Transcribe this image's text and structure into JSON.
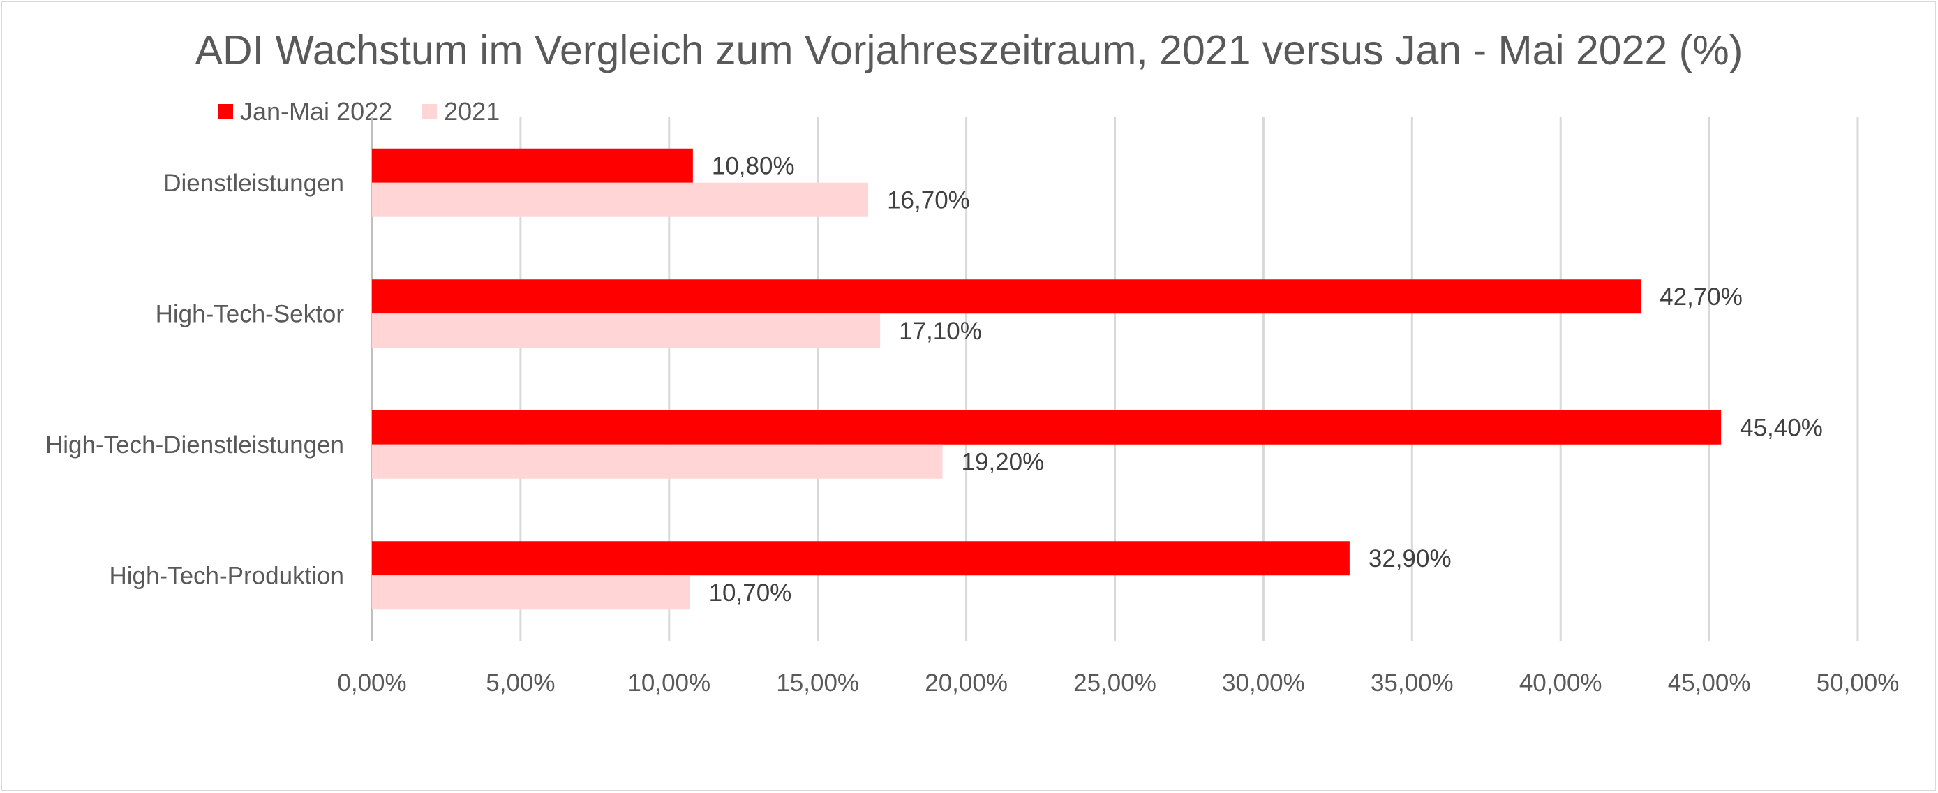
{
  "chart_data": {
    "type": "bar",
    "orientation": "horizontal",
    "title": "ADI Wachstum im Vergleich zum Vorjahreszeitraum, 2021 versus Jan - Mai 2022 (%)",
    "categories": [
      "Dienstleistungen",
      "High-Tech-Sektor",
      "High-Tech-Dienstleistungen",
      "High-Tech-Produktion"
    ],
    "series": [
      {
        "name": "Jan-Mai 2022",
        "color": "#ff0000",
        "values": [
          10.8,
          42.7,
          45.4,
          32.9
        ],
        "labels": [
          "10,80%",
          "42,70%",
          "45,40%",
          "32,90%"
        ]
      },
      {
        "name": "2021",
        "color": "#ffd5d5",
        "values": [
          16.7,
          17.1,
          19.2,
          10.7
        ],
        "labels": [
          "16,70%",
          "17,10%",
          "19,20%",
          "10,70%"
        ]
      }
    ],
    "xlim": [
      0,
      50
    ],
    "xticks": [
      0,
      5,
      10,
      15,
      20,
      25,
      30,
      35,
      40,
      45,
      50
    ],
    "xtick_labels": [
      "0,00%",
      "5,00%",
      "10,00%",
      "15,00%",
      "20,00%",
      "25,00%",
      "30,00%",
      "35,00%",
      "40,00%",
      "45,00%",
      "50,00%"
    ],
    "grid": "vertical",
    "legend_position": "top-left"
  }
}
